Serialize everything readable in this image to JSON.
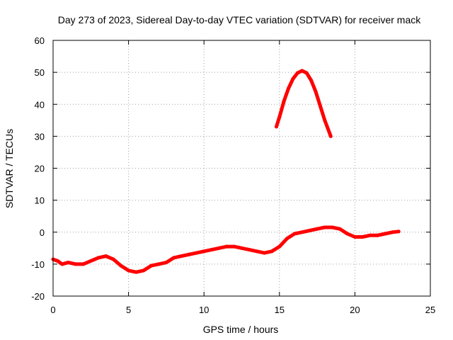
{
  "chart_data": {
    "type": "line",
    "title": "Day 273 of 2023, Sidereal Day-to-day VTEC variation (SDTVAR) for receiver mack",
    "xlabel": "GPS time / hours",
    "ylabel": "SDTVAR / TECUs",
    "xlim": [
      0,
      25
    ],
    "ylim": [
      -20,
      60
    ],
    "xticks": [
      0,
      5,
      10,
      15,
      20,
      25
    ],
    "yticks": [
      -20,
      -10,
      0,
      10,
      20,
      30,
      40,
      50,
      60
    ],
    "grid": true,
    "color": "#ff0000",
    "series": [
      {
        "name": "SDTVAR main",
        "x": [
          0.0,
          0.3,
          0.6,
          1.0,
          1.5,
          2.0,
          2.5,
          3.0,
          3.5,
          4.0,
          4.5,
          5.0,
          5.5,
          6.0,
          6.5,
          7.0,
          7.5,
          8.0,
          8.5,
          9.0,
          9.5,
          10.0,
          10.5,
          11.0,
          11.5,
          12.0,
          12.5,
          13.0,
          13.5,
          14.0,
          14.5,
          15.0,
          15.5,
          16.0,
          16.5,
          17.0,
          17.5,
          18.0,
          18.5,
          19.0,
          19.5,
          20.0,
          20.5,
          21.0,
          21.5,
          22.0,
          22.5,
          22.9
        ],
        "y": [
          -8.5,
          -9.0,
          -10.0,
          -9.5,
          -10.0,
          -10.0,
          -9.0,
          -8.0,
          -7.5,
          -8.5,
          -10.5,
          -12.0,
          -12.5,
          -12.0,
          -10.5,
          -10.0,
          -9.5,
          -8.0,
          -7.5,
          -7.0,
          -6.5,
          -6.0,
          -5.5,
          -5.0,
          -4.5,
          -4.5,
          -5.0,
          -5.5,
          -6.0,
          -6.5,
          -6.0,
          -4.5,
          -2.0,
          -0.5,
          0.0,
          0.5,
          1.0,
          1.5,
          1.5,
          1.0,
          -0.5,
          -1.5,
          -1.5,
          -1.0,
          -1.0,
          -0.5,
          0.0,
          0.2
        ]
      },
      {
        "name": "SDTVAR arc",
        "x": [
          14.8,
          15.0,
          15.3,
          15.6,
          15.9,
          16.2,
          16.5,
          16.8,
          17.1,
          17.4,
          17.7,
          18.0,
          18.4
        ],
        "y": [
          33.0,
          36.0,
          41.0,
          45.0,
          48.0,
          49.8,
          50.5,
          49.8,
          47.5,
          44.0,
          39.5,
          35.0,
          30.0
        ]
      }
    ]
  }
}
